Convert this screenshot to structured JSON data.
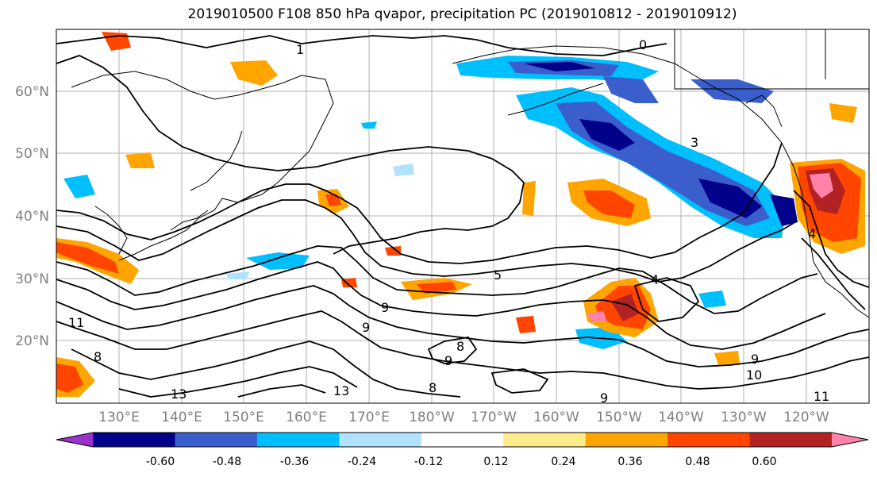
{
  "title": "2019010500 F108 850 hPa qvapor, precipitation PC (2019010812 - 2019010912)",
  "lat_labels": [
    "60°N",
    "50°N",
    "40°N",
    "30°N",
    "20°N"
  ],
  "lon_labels": [
    "130°E",
    "140°E",
    "150°E",
    "160°E",
    "170°E",
    "180°W",
    "170°W",
    "160°W",
    "150°W",
    "140°W",
    "130°W",
    "120°W"
  ],
  "contour_labels": [
    "0",
    "3",
    "4",
    "5",
    "9",
    "9",
    "8",
    "9",
    "13",
    "13",
    "11",
    "8",
    "9",
    "10",
    "9",
    "8",
    "11",
    "4",
    "1"
  ],
  "colorbar": {
    "tick_labels": [
      "-0.60",
      "-0.48",
      "-0.36",
      "-0.24",
      "-0.12",
      "0.12",
      "0.24",
      "0.36",
      "0.48",
      "0.60"
    ],
    "colors": [
      "#9932cc",
      "#00008b",
      "#3a5fcd",
      "#00bfff",
      "#b0e2ff",
      "#ffffff",
      "#ffec8b",
      "#ffa500",
      "#ff4500",
      "#b22222",
      "#ff82ab"
    ]
  },
  "legend_colors": {
    "grid": "#b0b0b0",
    "contour": "#000000",
    "label": "#808080"
  }
}
